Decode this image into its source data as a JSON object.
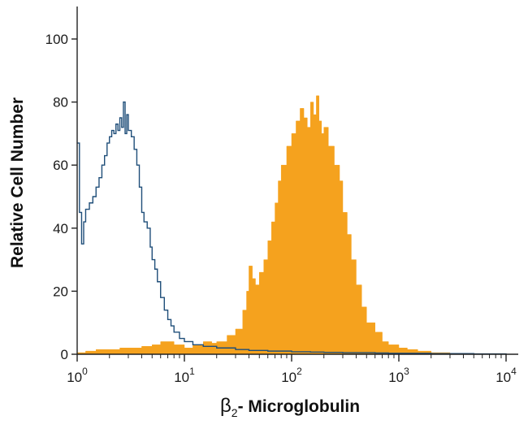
{
  "chart_data": {
    "type": "area",
    "xlabel_symbol": "β",
    "xlabel_sub": "2",
    "xlabel_rest": "- Microglobulin",
    "ylabel": "Relative Cell Number",
    "x_scale": "log",
    "xlim": [
      1,
      10000
    ],
    "ylim": [
      0,
      100
    ],
    "x_ticks": [
      {
        "base": "10",
        "exp": "0",
        "value": 1
      },
      {
        "base": "10",
        "exp": "1",
        "value": 10
      },
      {
        "base": "10",
        "exp": "2",
        "value": 100
      },
      {
        "base": "10",
        "exp": "3",
        "value": 1000
      },
      {
        "base": "10",
        "exp": "4",
        "value": 10000
      }
    ],
    "y_ticks": [
      "0",
      "20",
      "40",
      "60",
      "80",
      "100"
    ],
    "grid": false,
    "legend": "none",
    "series": [
      {
        "style": "outline",
        "color": "#1f4e79",
        "x": [
          1.0,
          1.05,
          1.1,
          1.15,
          1.2,
          1.3,
          1.4,
          1.5,
          1.6,
          1.7,
          1.8,
          1.9,
          2.0,
          2.1,
          2.2,
          2.3,
          2.4,
          2.5,
          2.6,
          2.7,
          2.8,
          2.9,
          3.0,
          3.2,
          3.4,
          3.6,
          3.8,
          4.0,
          4.2,
          4.5,
          4.8,
          5.0,
          5.3,
          5.6,
          6.0,
          6.5,
          7.0,
          7.5,
          8.0,
          9.0,
          10.0,
          12.0,
          15.0,
          20.0,
          30.0,
          40.0,
          60.0,
          80.0,
          100.0,
          150.0,
          200.0,
          300.0,
          400.0,
          600.0,
          800.0,
          1000.0,
          2000.0,
          5000.0,
          10000.0
        ],
        "y": [
          67,
          45,
          35,
          42,
          46,
          48,
          50,
          53,
          56,
          60,
          63,
          67,
          69,
          71,
          70,
          73,
          71,
          75,
          72,
          80,
          70,
          76,
          71,
          69,
          65,
          60,
          53,
          45,
          42,
          40,
          34,
          30,
          27,
          23,
          18,
          14,
          11,
          9,
          7,
          5,
          4,
          3,
          2.5,
          2,
          1.5,
          1.2,
          1,
          1,
          0.8,
          0.7,
          0.6,
          0.5,
          0.5,
          0.4,
          0.3,
          0.3,
          0.2,
          0.1,
          0
        ]
      },
      {
        "style": "filled",
        "color": "#f5a21e",
        "x": [
          1.0,
          1.2,
          1.5,
          2.0,
          2.5,
          3.0,
          4.0,
          5.0,
          6.0,
          8.0,
          10.0,
          12.0,
          15.0,
          18.0,
          20.0,
          25.0,
          30.0,
          35.0,
          38.0,
          40.0,
          43.0,
          46.0,
          50.0,
          55.0,
          60.0,
          65.0,
          70.0,
          75.0,
          80.0,
          90.0,
          100.0,
          110.0,
          120.0,
          130.0,
          140.0,
          150.0,
          160.0,
          170.0,
          180.0,
          190.0,
          200.0,
          220.0,
          250.0,
          280.0,
          300.0,
          330.0,
          360.0,
          400.0,
          450.0,
          500.0,
          600.0,
          700.0,
          800.0,
          1000.0,
          1200.0,
          1500.0,
          2000.0,
          3000.0,
          5000.0,
          10000.0
        ],
        "y": [
          0.5,
          1,
          1.5,
          1.5,
          2,
          2,
          2.5,
          3,
          4,
          3,
          2,
          3,
          4,
          3.5,
          4,
          6,
          8,
          14,
          20,
          28,
          24,
          22,
          26,
          30,
          36,
          42,
          48,
          55,
          60,
          66,
          70,
          74,
          78,
          75,
          72,
          80,
          76,
          82,
          74,
          70,
          72,
          66,
          60,
          55,
          45,
          38,
          30,
          22,
          15,
          10,
          7,
          4,
          3,
          2,
          1.5,
          1,
          0.5,
          0.3,
          0.1,
          0
        ]
      }
    ]
  }
}
